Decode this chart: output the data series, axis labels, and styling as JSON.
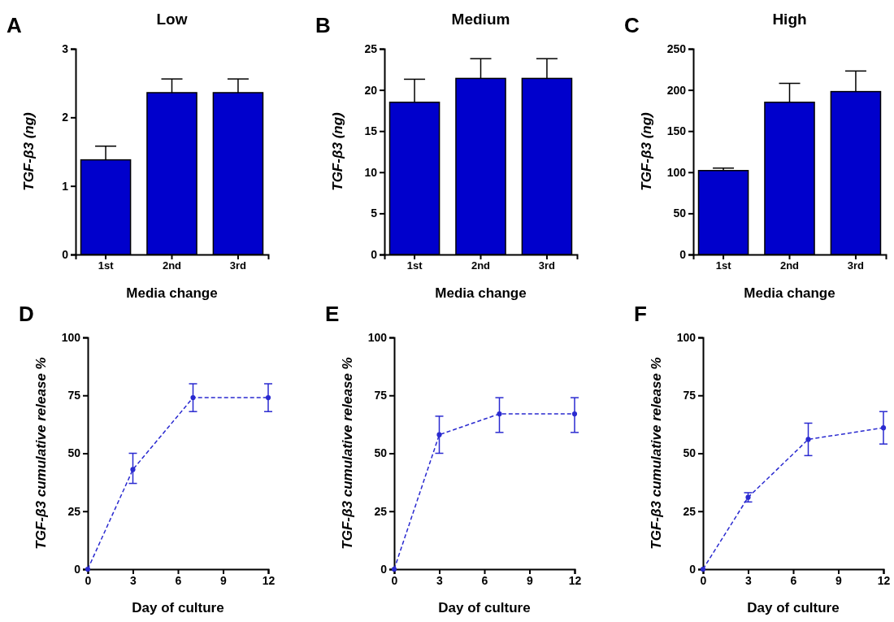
{
  "chart_data": [
    {
      "type": "bar",
      "title": "Low",
      "annotations": [
        "A"
      ],
      "xlabel": "Media change",
      "ylabel": "TGF-β3 (ng)",
      "categories": [
        "1st",
        "2nd",
        "3rd"
      ],
      "values": [
        1.38,
        2.36,
        2.36
      ],
      "errors": [
        [
          1.38,
          1.58
        ],
        [
          2.36,
          2.56
        ],
        [
          2.36,
          2.56
        ]
      ],
      "color": "#0000cc",
      "ylim": [
        0,
        3
      ],
      "yticks": [
        0,
        1,
        2,
        3
      ]
    },
    {
      "type": "bar",
      "title": "Medium",
      "annotations": [
        "B"
      ],
      "xlabel": "Media change",
      "ylabel": "TGF-β3 (ng)",
      "categories": [
        "1st",
        "2nd",
        "3rd"
      ],
      "values": [
        18.5,
        21.4,
        21.4
      ],
      "errors": [
        [
          18.5,
          21.3
        ],
        [
          21.4,
          23.8
        ],
        [
          21.4,
          23.8
        ]
      ],
      "color": "#0000cc",
      "ylim": [
        0,
        25
      ],
      "yticks": [
        0,
        5,
        10,
        15,
        20,
        25
      ]
    },
    {
      "type": "bar",
      "title": "High",
      "annotations": [
        "C"
      ],
      "xlabel": "Media change",
      "ylabel": "TGF-β3 (ng)",
      "categories": [
        "1st",
        "2nd",
        "3rd"
      ],
      "values": [
        102,
        185,
        198
      ],
      "errors": [
        [
          102,
          105
        ],
        [
          185,
          208
        ],
        [
          198,
          223
        ]
      ],
      "color": "#0000cc",
      "ylim": [
        0,
        250
      ],
      "yticks": [
        0,
        50,
        100,
        150,
        200,
        250
      ]
    },
    {
      "type": "line",
      "annotations": [
        "D"
      ],
      "xlabel": "Day of culture",
      "ylabel": "TGF-β3 cumulative release %",
      "x": [
        0,
        3,
        7,
        12
      ],
      "values": [
        0,
        43,
        74,
        74
      ],
      "errors": [
        null,
        [
          37,
          50
        ],
        [
          68,
          80
        ],
        [
          68,
          80
        ]
      ],
      "color": "#2a2ad0",
      "marker": "circle",
      "line_style": "dashed",
      "xlim": [
        0,
        12
      ],
      "xticks": [
        0,
        3,
        6,
        9,
        12
      ],
      "ylim": [
        0,
        100
      ],
      "yticks": [
        0,
        25,
        50,
        75,
        100
      ]
    },
    {
      "type": "line",
      "annotations": [
        "E"
      ],
      "xlabel": "Day of culture",
      "ylabel": "TGF-β3 cumulative release %",
      "x": [
        0,
        3,
        7,
        12
      ],
      "values": [
        0,
        58,
        67,
        67
      ],
      "errors": [
        null,
        [
          50,
          66
        ],
        [
          59,
          74
        ],
        [
          59,
          74
        ]
      ],
      "color": "#2a2ad0",
      "marker": "circle",
      "line_style": "dashed",
      "xlim": [
        0,
        12
      ],
      "xticks": [
        0,
        3,
        6,
        9,
        12
      ],
      "ylim": [
        0,
        100
      ],
      "yticks": [
        0,
        25,
        50,
        75,
        100
      ]
    },
    {
      "type": "line",
      "annotations": [
        "F"
      ],
      "xlabel": "Day of culture",
      "ylabel": "TGF-β3 cumulative release %",
      "x": [
        0,
        3,
        7,
        12
      ],
      "values": [
        0,
        31,
        56,
        61
      ],
      "errors": [
        null,
        [
          29,
          33
        ],
        [
          49,
          63
        ],
        [
          54,
          68
        ]
      ],
      "color": "#2a2ad0",
      "marker": "circle",
      "line_style": "dashed",
      "xlim": [
        0,
        12
      ],
      "xticks": [
        0,
        3,
        6,
        9,
        12
      ],
      "ylim": [
        0,
        100
      ],
      "yticks": [
        0,
        25,
        50,
        75,
        100
      ]
    }
  ]
}
